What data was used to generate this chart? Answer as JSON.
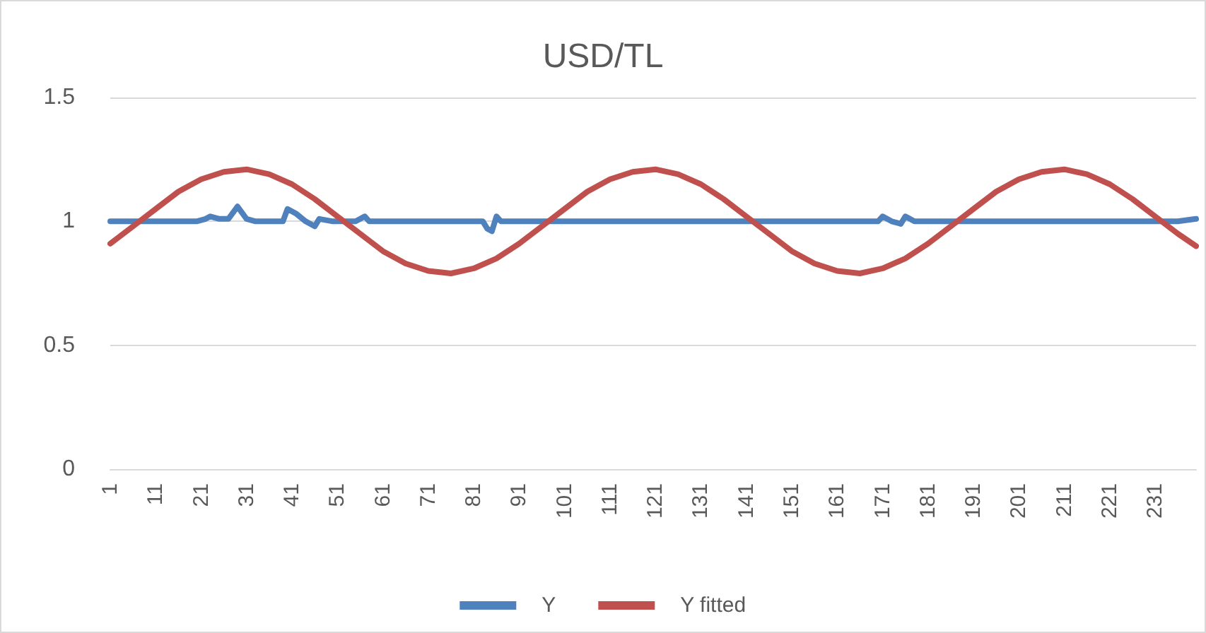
{
  "chart_data": {
    "type": "line",
    "title": "USD/TL",
    "xlim": [
      1,
      240
    ],
    "xticks": [
      1,
      11,
      21,
      31,
      41,
      51,
      61,
      71,
      81,
      91,
      101,
      111,
      121,
      131,
      141,
      151,
      161,
      171,
      181,
      191,
      201,
      211,
      221,
      231
    ],
    "ylim": [
      0,
      1.5
    ],
    "yticks": [
      0,
      0.5,
      1,
      1.5
    ],
    "grid": "y",
    "legend": "bottom",
    "marker": "none",
    "line_style": "solid",
    "series": [
      {
        "name": "Y",
        "color": "#4f81bd",
        "x": [
          1,
          20,
          22,
          23,
          25,
          27,
          29,
          31,
          33,
          37,
          39,
          40,
          42,
          44,
          46,
          47,
          50,
          55,
          57,
          58,
          70,
          83,
          84,
          85,
          86,
          87,
          100,
          130,
          160,
          170,
          171,
          173,
          175,
          176,
          178,
          200,
          225,
          236,
          240
        ],
        "values": [
          1.0,
          1.0,
          1.01,
          1.02,
          1.01,
          1.01,
          1.06,
          1.01,
          1.0,
          1.0,
          1.0,
          1.05,
          1.03,
          1.0,
          0.98,
          1.01,
          1.0,
          1.0,
          1.02,
          1.0,
          1.0,
          1.0,
          0.97,
          0.96,
          1.02,
          1.0,
          1.0,
          1.0,
          1.0,
          1.0,
          1.02,
          1.0,
          0.99,
          1.02,
          1.0,
          1.0,
          1.0,
          1.0,
          1.01
        ]
      },
      {
        "name": "Y fitted",
        "color": "#c0504d",
        "x": [
          1,
          6,
          11,
          16,
          21,
          26,
          31,
          36,
          41,
          46,
          51,
          56,
          61,
          66,
          71,
          76,
          81,
          86,
          91,
          96,
          101,
          106,
          111,
          116,
          121,
          126,
          131,
          136,
          141,
          146,
          151,
          156,
          161,
          166,
          171,
          176,
          181,
          186,
          191,
          196,
          201,
          206,
          211,
          216,
          221,
          226,
          231,
          236,
          240
        ],
        "values": [
          0.91,
          0.98,
          1.05,
          1.12,
          1.17,
          1.2,
          1.21,
          1.19,
          1.15,
          1.09,
          1.02,
          0.95,
          0.88,
          0.83,
          0.8,
          0.79,
          0.81,
          0.85,
          0.91,
          0.98,
          1.05,
          1.12,
          1.17,
          1.2,
          1.21,
          1.19,
          1.15,
          1.09,
          1.02,
          0.95,
          0.88,
          0.83,
          0.8,
          0.79,
          0.81,
          0.85,
          0.91,
          0.98,
          1.05,
          1.12,
          1.17,
          1.2,
          1.21,
          1.19,
          1.15,
          1.09,
          1.02,
          0.95,
          0.9
        ]
      }
    ]
  }
}
